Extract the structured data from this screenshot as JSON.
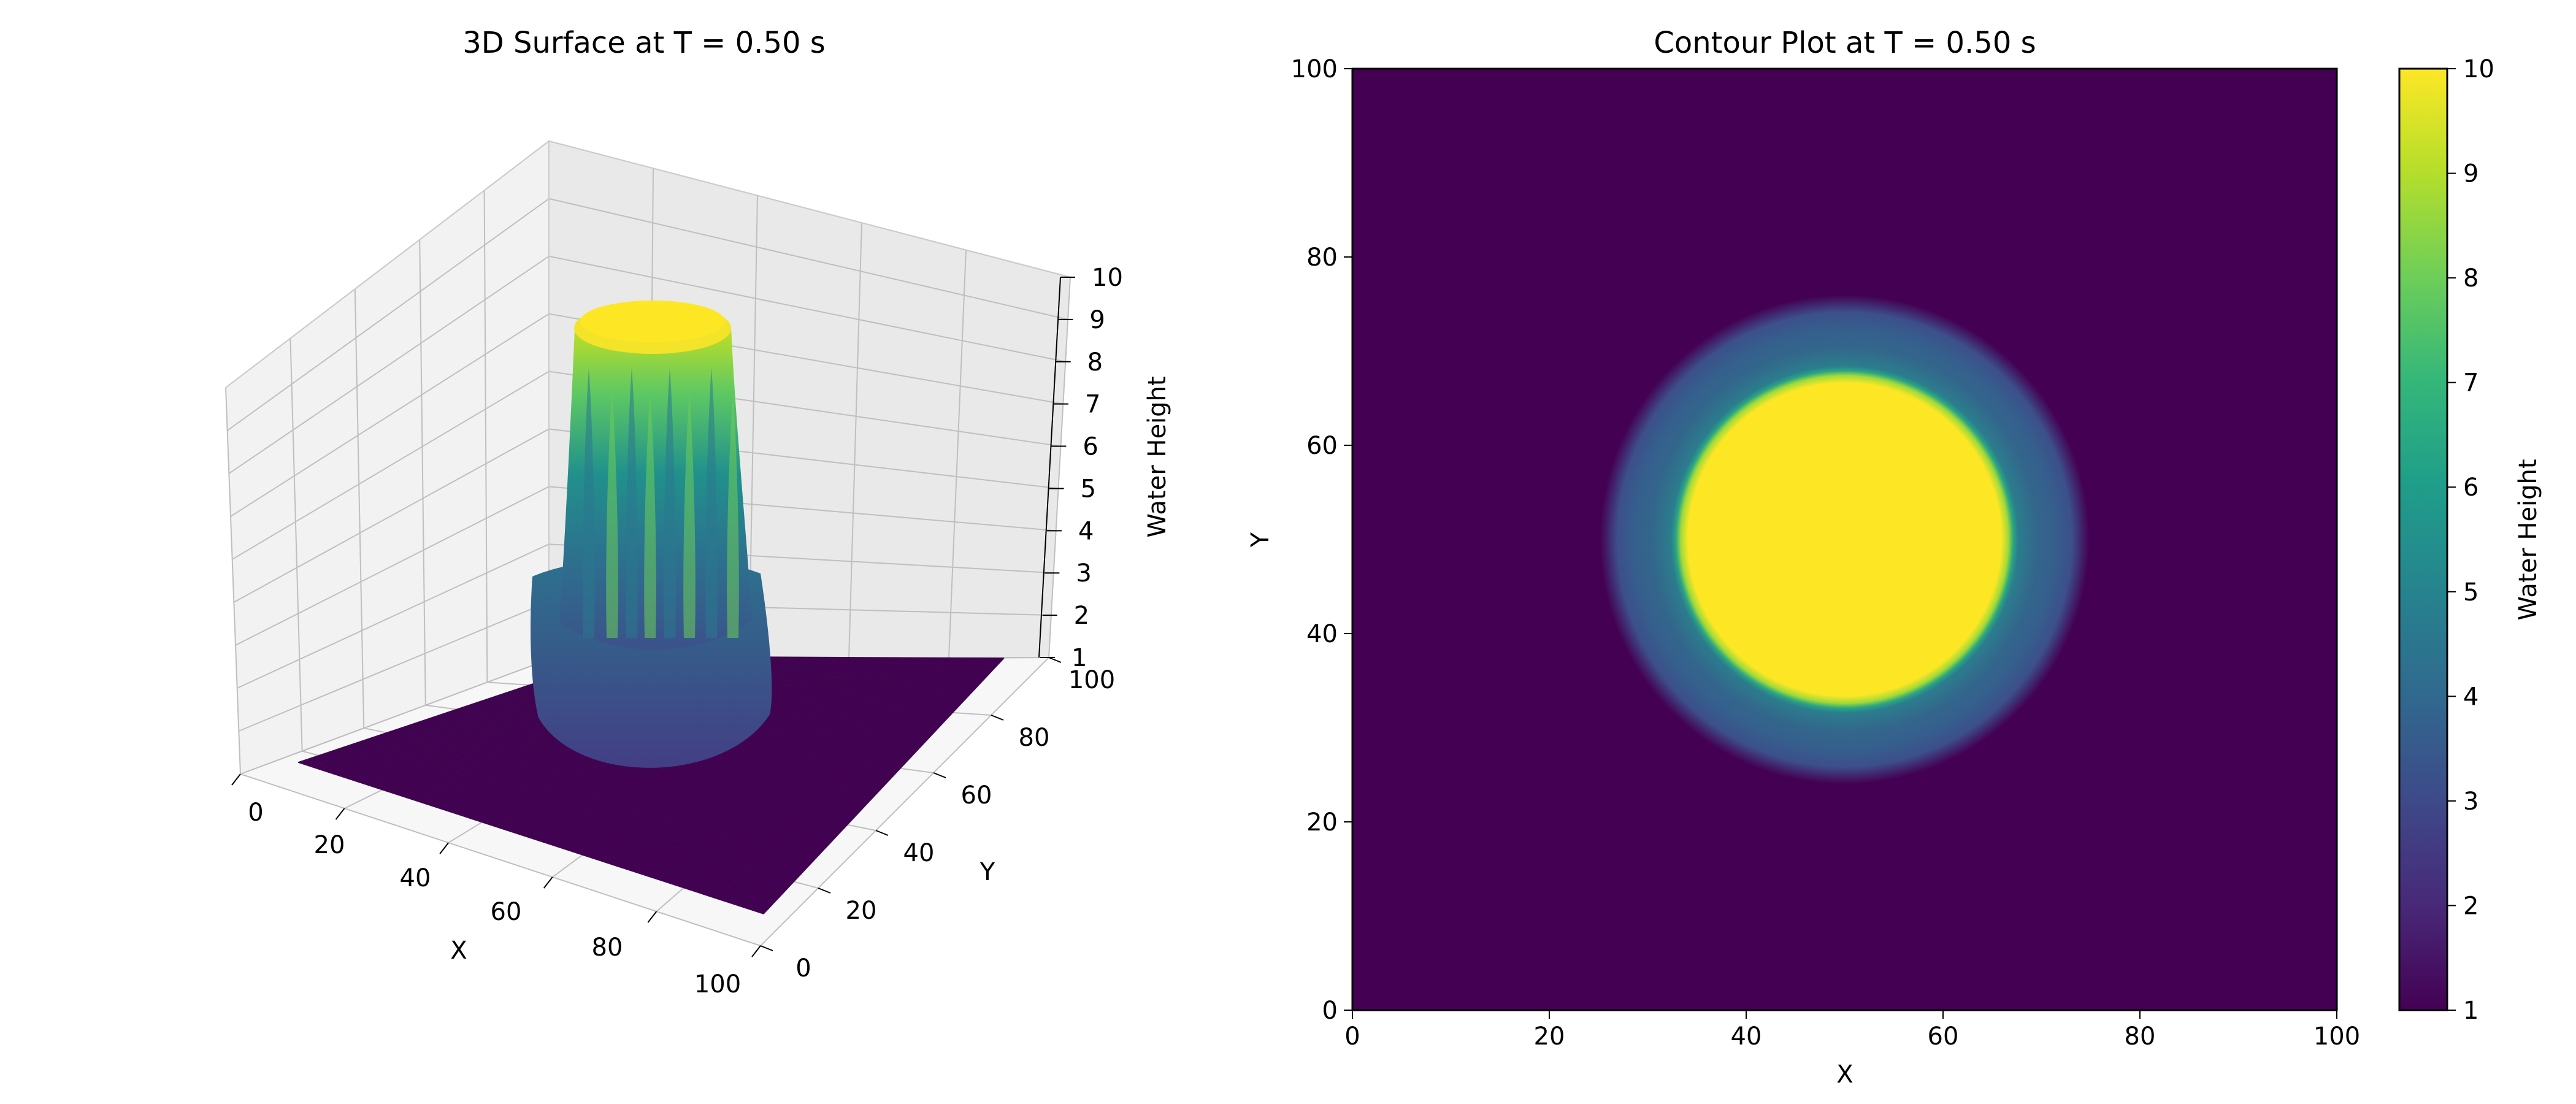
{
  "chart_data": [
    {
      "type": "surface3d",
      "title": "3D Surface at T = 0.50 s",
      "xlabel": "X",
      "ylabel": "Y",
      "zlabel": "Water Height",
      "xticks": [
        0,
        20,
        40,
        60,
        80,
        100
      ],
      "yticks": [
        0,
        20,
        40,
        60,
        80,
        100
      ],
      "zticks": [
        1,
        2,
        3,
        4,
        5,
        6,
        7,
        8,
        9,
        10
      ],
      "xlim": [
        0,
        100
      ],
      "ylim": [
        0,
        100
      ],
      "zlim": [
        1,
        10
      ],
      "colormap": "viridis",
      "grid": true,
      "surface": {
        "base_height": 1,
        "center": [
          50,
          50
        ],
        "plateau_height": 10,
        "plateau_radius": 16,
        "ring_height": 4.2,
        "ring_outer_radius": 23
      }
    },
    {
      "type": "heatmap",
      "title": "Contour Plot at T = 0.50 s",
      "xlabel": "X",
      "ylabel": "Y",
      "xticks": [
        0,
        20,
        40,
        60,
        80,
        100
      ],
      "yticks": [
        0,
        20,
        40,
        60,
        80,
        100
      ],
      "xlim": [
        0,
        100
      ],
      "ylim": [
        0,
        100
      ],
      "colormap": "viridis",
      "colorbar": {
        "label": "Water Height",
        "ticks": [
          1,
          2,
          3,
          4,
          5,
          6,
          7,
          8,
          9,
          10
        ],
        "range": [
          1,
          10
        ]
      },
      "field": {
        "base_height": 1,
        "center": [
          50,
          50
        ],
        "plateau_height": 10,
        "plateau_radius": 16,
        "ring_height": 4.2,
        "ring_outer_radius": 23
      }
    }
  ],
  "colors": {
    "viridis_low": "#440154",
    "viridis_mid": "#21918c",
    "viridis_high": "#fde725",
    "pane": "#f2f2f2",
    "grid": "#bfbfbf"
  }
}
